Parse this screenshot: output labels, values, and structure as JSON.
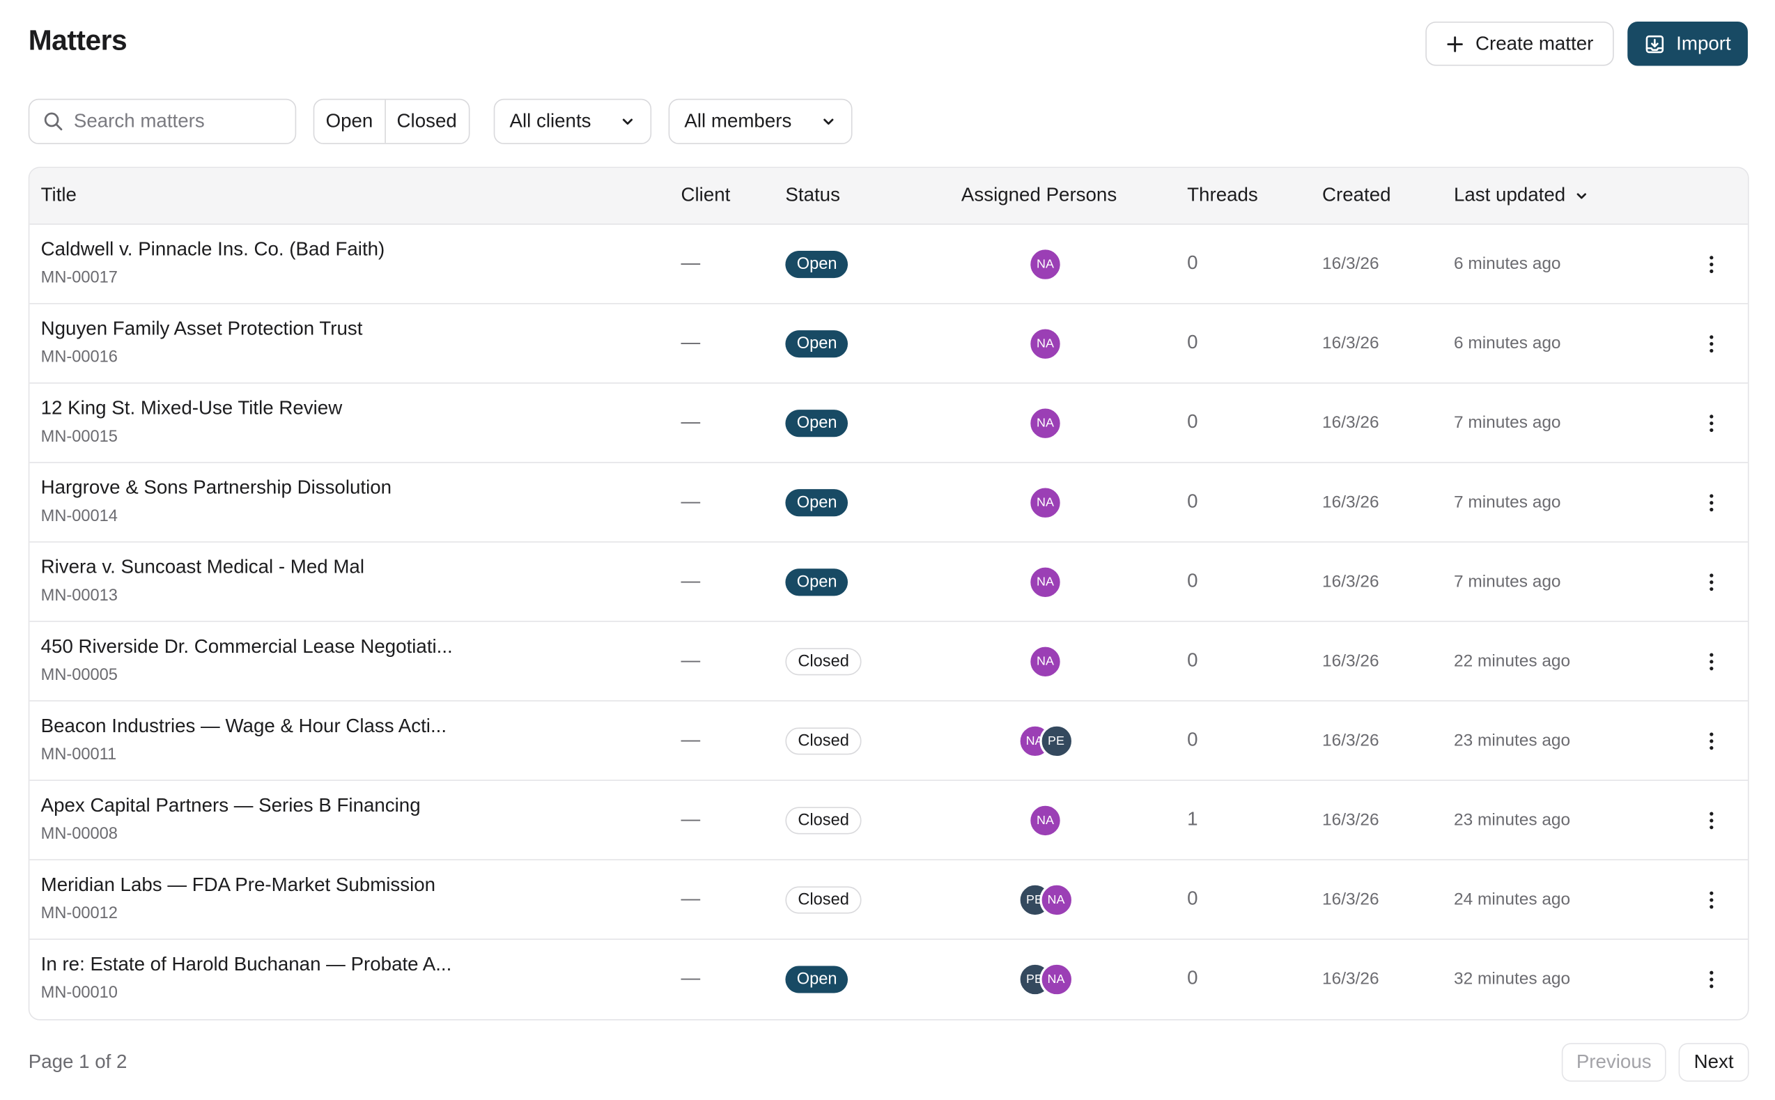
{
  "header": {
    "title": "Matters",
    "create_label": "Create matter",
    "import_label": "Import"
  },
  "toolbar": {
    "search_placeholder": "Search matters",
    "status_filter": [
      "Open",
      "Closed"
    ],
    "client_filter": "All clients",
    "member_filter": "All members"
  },
  "table": {
    "columns": {
      "title": "Title",
      "client": "Client",
      "status": "Status",
      "assigned": "Assigned Persons",
      "threads": "Threads",
      "created": "Created",
      "updated": "Last updated"
    },
    "rows": [
      {
        "title": "Caldwell v. Pinnacle Ins. Co. (Bad Faith)",
        "id": "MN-00017",
        "client": "—",
        "status": "Open",
        "assigned": [
          "NA"
        ],
        "threads": "0",
        "created": "16/3/26",
        "updated": "6 minutes ago"
      },
      {
        "title": "Nguyen Family Asset Protection Trust",
        "id": "MN-00016",
        "client": "—",
        "status": "Open",
        "assigned": [
          "NA"
        ],
        "threads": "0",
        "created": "16/3/26",
        "updated": "6 minutes ago"
      },
      {
        "title": "12 King St. Mixed-Use Title Review",
        "id": "MN-00015",
        "client": "—",
        "status": "Open",
        "assigned": [
          "NA"
        ],
        "threads": "0",
        "created": "16/3/26",
        "updated": "7 minutes ago"
      },
      {
        "title": "Hargrove & Sons Partnership Dissolution",
        "id": "MN-00014",
        "client": "—",
        "status": "Open",
        "assigned": [
          "NA"
        ],
        "threads": "0",
        "created": "16/3/26",
        "updated": "7 minutes ago"
      },
      {
        "title": "Rivera v. Suncoast Medical - Med Mal",
        "id": "MN-00013",
        "client": "—",
        "status": "Open",
        "assigned": [
          "NA"
        ],
        "threads": "0",
        "created": "16/3/26",
        "updated": "7 minutes ago"
      },
      {
        "title": "450 Riverside Dr. Commercial Lease Negotiati...",
        "id": "MN-00005",
        "client": "—",
        "status": "Closed",
        "assigned": [
          "NA"
        ],
        "threads": "0",
        "created": "16/3/26",
        "updated": "22 minutes ago"
      },
      {
        "title": "Beacon Industries — Wage & Hour Class Acti...",
        "id": "MN-00011",
        "client": "—",
        "status": "Closed",
        "assigned": [
          "NA",
          "PE"
        ],
        "threads": "0",
        "created": "16/3/26",
        "updated": "23 minutes ago"
      },
      {
        "title": "Apex Capital Partners — Series B Financing",
        "id": "MN-00008",
        "client": "—",
        "status": "Closed",
        "assigned": [
          "NA"
        ],
        "threads": "1",
        "created": "16/3/26",
        "updated": "23 minutes ago"
      },
      {
        "title": "Meridian Labs — FDA Pre-Market Submission",
        "id": "MN-00012",
        "client": "—",
        "status": "Closed",
        "assigned": [
          "PE",
          "NA"
        ],
        "threads": "0",
        "created": "16/3/26",
        "updated": "24 minutes ago"
      },
      {
        "title": "In re: Estate of Harold Buchanan — Probate A...",
        "id": "MN-00010",
        "client": "—",
        "status": "Open",
        "assigned": [
          "PE",
          "NA"
        ],
        "threads": "0",
        "created": "16/3/26",
        "updated": "32 minutes ago"
      }
    ]
  },
  "pagination": {
    "info": "Page 1 of 2",
    "prev_label": "Previous",
    "next_label": "Next"
  },
  "colors": {
    "accent": "#184a64",
    "avatar_NA": "#9b3fb5",
    "avatar_PE": "#34495e"
  }
}
